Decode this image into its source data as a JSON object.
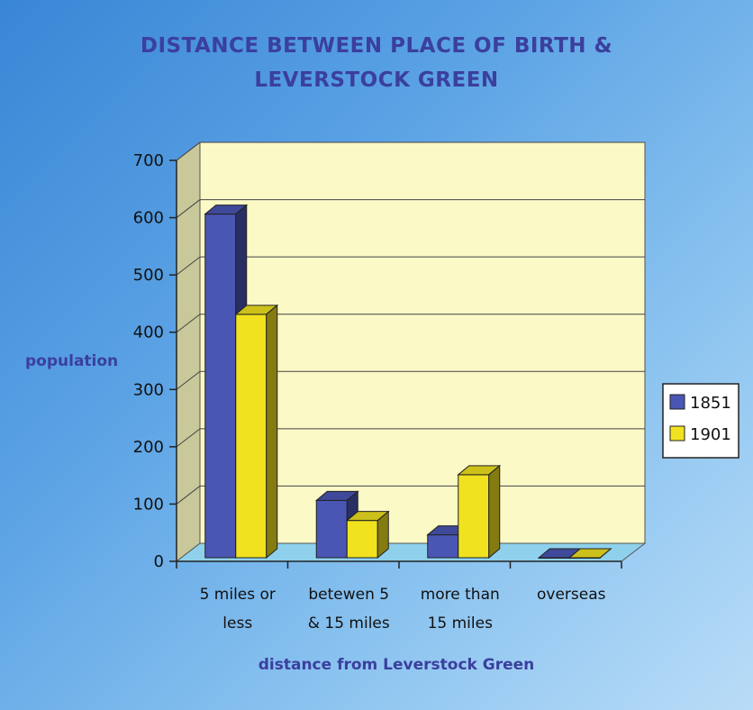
{
  "chart_data": {
    "type": "bar",
    "title_lines": [
      "DISTANCE BETWEEN PLACE OF BIRTH &",
      "LEVERSTOCK GREEN"
    ],
    "xlabel": "distance from Leverstock Green",
    "ylabel": "population",
    "categories": [
      [
        "5 miles or",
        "less"
      ],
      [
        "betewen 5",
        "& 15 miles"
      ],
      [
        "more than",
        "15 miles"
      ],
      [
        "overseas"
      ]
    ],
    "series": [
      {
        "name": "1851",
        "color": "#4a56b4",
        "values": [
          600,
          100,
          40,
          0
        ]
      },
      {
        "name": "1901",
        "color": "#f0e21e",
        "values": [
          425,
          65,
          145,
          0
        ]
      }
    ],
    "ylim": [
      0,
      700
    ],
    "yticks": [
      "0",
      "100",
      "200",
      "300",
      "400",
      "500",
      "600",
      "700"
    ],
    "grid": true,
    "legend_position": "right"
  }
}
